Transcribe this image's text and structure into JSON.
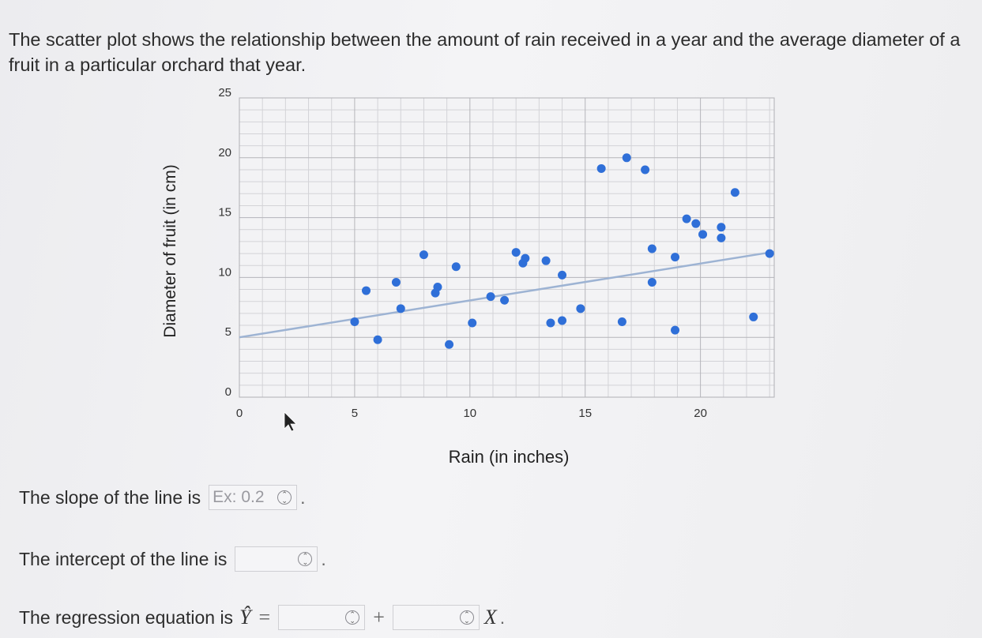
{
  "intro": "The scatter plot shows the relationship between the amount of rain received in a year and the average diameter of a fruit in a particular orchard that year.",
  "chart_data": {
    "type": "scatter",
    "xlabel": "Rain (in inches)",
    "ylabel": "Diameter of fruit (in cm)",
    "xlim": [
      0,
      23.2
    ],
    "ylim": [
      0,
      25
    ],
    "xticks": [
      0,
      5,
      10,
      15,
      20
    ],
    "yticks": [
      0,
      5,
      10,
      15,
      20,
      25
    ],
    "grid": true,
    "point_color": "#2f6fd8",
    "line_color": "#9db3d3",
    "points": [
      [
        5.0,
        6.3
      ],
      [
        5.5,
        8.9
      ],
      [
        6.0,
        4.8
      ],
      [
        6.8,
        9.6
      ],
      [
        7.0,
        7.4
      ],
      [
        8.0,
        11.9
      ],
      [
        8.5,
        8.7
      ],
      [
        8.6,
        9.2
      ],
      [
        9.1,
        4.4
      ],
      [
        9.4,
        10.9
      ],
      [
        10.1,
        6.2
      ],
      [
        10.9,
        8.4
      ],
      [
        11.5,
        8.1
      ],
      [
        12.0,
        12.1
      ],
      [
        12.3,
        11.2
      ],
      [
        12.4,
        11.6
      ],
      [
        13.3,
        11.4
      ],
      [
        13.5,
        6.2
      ],
      [
        14.0,
        10.2
      ],
      [
        14.0,
        6.4
      ],
      [
        14.8,
        7.4
      ],
      [
        15.7,
        19.1
      ],
      [
        16.6,
        6.3
      ],
      [
        16.8,
        20.0
      ],
      [
        17.6,
        19.0
      ],
      [
        17.9,
        12.4
      ],
      [
        17.9,
        9.6
      ],
      [
        18.9,
        11.7
      ],
      [
        18.9,
        5.6
      ],
      [
        19.4,
        14.9
      ],
      [
        19.8,
        14.5
      ],
      [
        20.1,
        13.6
      ],
      [
        20.9,
        14.2
      ],
      [
        20.9,
        13.3
      ],
      [
        21.5,
        17.1
      ],
      [
        22.3,
        6.7
      ],
      [
        23.0,
        12.0
      ]
    ],
    "regression_line": {
      "x": [
        0,
        23.2
      ],
      "y": [
        5.0,
        12.15
      ]
    }
  },
  "slope": {
    "label": "The slope of the line is",
    "placeholder": "Ex: 0.2",
    "value": ""
  },
  "intercept": {
    "label": "The intercept of the line is",
    "value": ""
  },
  "equation": {
    "label": "The regression equation is",
    "lhs": "Ŷ",
    "equals": "=",
    "plus": "+",
    "var": "X"
  },
  "spinner_icon": "up-down-chevron-icon"
}
